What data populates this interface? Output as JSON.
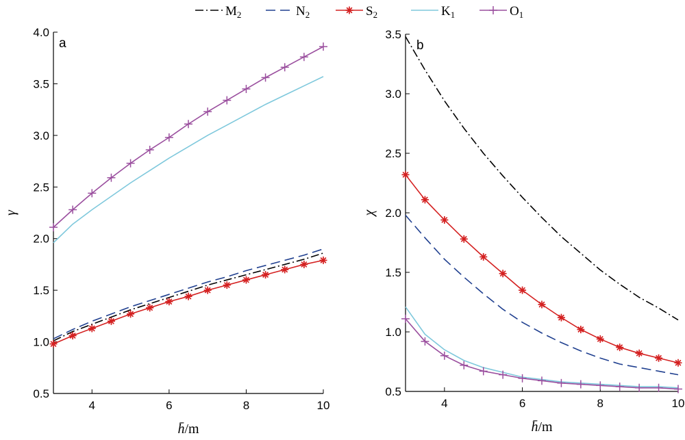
{
  "legend": [
    {
      "name": "M",
      "sub": "2",
      "color": "#000000",
      "dash": "12,4,2,4",
      "marker": "none"
    },
    {
      "name": "N",
      "sub": "2",
      "color": "#1f3f8f",
      "dash": "14,7",
      "marker": "none"
    },
    {
      "name": "S",
      "sub": "2",
      "color": "#d42020",
      "dash": "",
      "marker": "star"
    },
    {
      "name": "K",
      "sub": "1",
      "color": "#7ec8dc",
      "dash": "",
      "marker": "none"
    },
    {
      "name": "O",
      "sub": "1",
      "color": "#9a4e9e",
      "dash": "",
      "marker": "plus"
    }
  ],
  "chart_data": [
    {
      "type": "line",
      "panel_label": "a",
      "ylabel": "γ",
      "xlabel": "h̄/m",
      "xlim": [
        3,
        10
      ],
      "ylim": [
        0.5,
        4.0
      ],
      "xticks": [
        "4",
        "6",
        "8",
        "10"
      ],
      "yticks": [
        "0.5",
        "1.0",
        "1.5",
        "2.0",
        "2.5",
        "3.0",
        "3.5",
        "4.0"
      ],
      "x": [
        3,
        3.5,
        4,
        4.5,
        5,
        5.5,
        6,
        6.5,
        7,
        7.5,
        8,
        8.5,
        9,
        9.5,
        10
      ],
      "series": [
        {
          "name": "M2",
          "values": [
            1.01,
            1.1,
            1.17,
            1.24,
            1.31,
            1.37,
            1.43,
            1.49,
            1.55,
            1.6,
            1.65,
            1.7,
            1.75,
            1.8,
            1.86
          ]
        },
        {
          "name": "N2",
          "values": [
            1.03,
            1.12,
            1.2,
            1.27,
            1.34,
            1.4,
            1.46,
            1.52,
            1.58,
            1.63,
            1.69,
            1.74,
            1.79,
            1.84,
            1.9
          ]
        },
        {
          "name": "S2",
          "values": [
            0.98,
            1.06,
            1.13,
            1.2,
            1.27,
            1.33,
            1.39,
            1.44,
            1.5,
            1.55,
            1.6,
            1.65,
            1.7,
            1.75,
            1.79
          ]
        },
        {
          "name": "K1",
          "values": [
            1.96,
            2.14,
            2.28,
            2.41,
            2.54,
            2.66,
            2.78,
            2.89,
            3.0,
            3.1,
            3.2,
            3.3,
            3.39,
            3.48,
            3.57
          ]
        },
        {
          "name": "O1",
          "values": [
            2.11,
            2.28,
            2.44,
            2.59,
            2.73,
            2.86,
            2.98,
            3.11,
            3.23,
            3.34,
            3.45,
            3.56,
            3.66,
            3.76,
            3.86
          ]
        }
      ]
    },
    {
      "type": "line",
      "panel_label": "b",
      "ylabel": "χ",
      "xlabel": "h̄/m",
      "xlim": [
        3,
        10
      ],
      "ylim": [
        0.5,
        3.5
      ],
      "xticks": [
        "4",
        "6",
        "8",
        "10"
      ],
      "yticks": [
        "0.5",
        "1.0",
        "1.5",
        "2.0",
        "2.5",
        "3.0",
        "3.5"
      ],
      "x": [
        3,
        3.5,
        4,
        4.5,
        5,
        5.5,
        6,
        6.5,
        7,
        7.5,
        8,
        8.5,
        9,
        9.5,
        10
      ],
      "series": [
        {
          "name": "M2",
          "values": [
            3.48,
            3.2,
            2.94,
            2.71,
            2.5,
            2.31,
            2.13,
            1.96,
            1.8,
            1.66,
            1.52,
            1.4,
            1.29,
            1.2,
            1.1
          ]
        },
        {
          "name": "N2",
          "values": [
            1.98,
            1.79,
            1.61,
            1.46,
            1.32,
            1.19,
            1.08,
            0.99,
            0.91,
            0.84,
            0.78,
            0.73,
            0.7,
            0.67,
            0.64
          ]
        },
        {
          "name": "S2",
          "values": [
            2.32,
            2.11,
            1.94,
            1.78,
            1.63,
            1.49,
            1.35,
            1.23,
            1.12,
            1.02,
            0.94,
            0.87,
            0.82,
            0.78,
            0.74
          ]
        },
        {
          "name": "K1",
          "values": [
            1.21,
            0.98,
            0.85,
            0.76,
            0.7,
            0.66,
            0.62,
            0.6,
            0.58,
            0.57,
            0.56,
            0.55,
            0.54,
            0.54,
            0.53
          ]
        },
        {
          "name": "O1",
          "values": [
            1.11,
            0.92,
            0.8,
            0.72,
            0.67,
            0.64,
            0.61,
            0.59,
            0.57,
            0.56,
            0.55,
            0.54,
            0.53,
            0.53,
            0.52
          ]
        }
      ]
    }
  ]
}
